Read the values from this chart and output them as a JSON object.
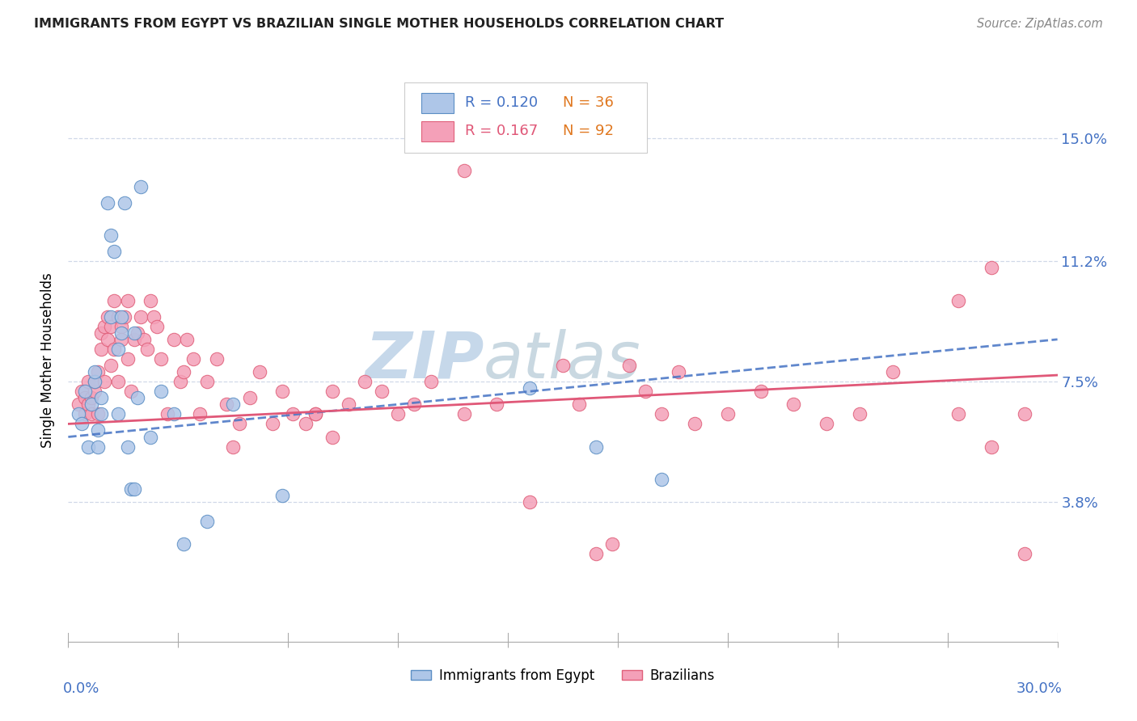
{
  "title": "IMMIGRANTS FROM EGYPT VS BRAZILIAN SINGLE MOTHER HOUSEHOLDS CORRELATION CHART",
  "source": "Source: ZipAtlas.com",
  "ylabel": "Single Mother Households",
  "ytick_labels": [
    "15.0%",
    "11.2%",
    "7.5%",
    "3.8%"
  ],
  "ytick_values": [
    0.15,
    0.112,
    0.075,
    0.038
  ],
  "xlim": [
    0.0,
    0.3
  ],
  "ylim": [
    -0.005,
    0.168
  ],
  "legend_egypt_R": "0.120",
  "legend_egypt_N": "36",
  "legend_brazil_R": "0.167",
  "legend_brazil_N": "92",
  "egypt_face_color": "#aec6e8",
  "egypt_edge_color": "#5b8ec4",
  "brazil_face_color": "#f4a0b8",
  "brazil_edge_color": "#e0607a",
  "egypt_line_color": "#4472c4",
  "brazil_line_color": "#e05878",
  "axis_label_color": "#4472c4",
  "grid_color": "#d0d8e8",
  "n_color": "#e07820",
  "egypt_x": [
    0.003,
    0.004,
    0.005,
    0.006,
    0.007,
    0.008,
    0.008,
    0.009,
    0.009,
    0.01,
    0.01,
    0.012,
    0.013,
    0.013,
    0.014,
    0.015,
    0.015,
    0.016,
    0.016,
    0.017,
    0.018,
    0.019,
    0.02,
    0.02,
    0.021,
    0.022,
    0.025,
    0.028,
    0.032,
    0.035,
    0.042,
    0.05,
    0.065,
    0.14,
    0.16,
    0.18
  ],
  "egypt_y": [
    0.065,
    0.062,
    0.072,
    0.055,
    0.068,
    0.075,
    0.078,
    0.06,
    0.055,
    0.07,
    0.065,
    0.13,
    0.095,
    0.12,
    0.115,
    0.085,
    0.065,
    0.095,
    0.09,
    0.13,
    0.055,
    0.042,
    0.042,
    0.09,
    0.07,
    0.135,
    0.058,
    0.072,
    0.065,
    0.025,
    0.032,
    0.068,
    0.04,
    0.073,
    0.055,
    0.045
  ],
  "brazil_x": [
    0.003,
    0.004,
    0.005,
    0.005,
    0.006,
    0.006,
    0.007,
    0.007,
    0.008,
    0.008,
    0.009,
    0.009,
    0.01,
    0.01,
    0.011,
    0.011,
    0.012,
    0.012,
    0.013,
    0.013,
    0.014,
    0.014,
    0.015,
    0.015,
    0.016,
    0.016,
    0.017,
    0.018,
    0.018,
    0.019,
    0.02,
    0.021,
    0.022,
    0.023,
    0.024,
    0.025,
    0.026,
    0.027,
    0.028,
    0.03,
    0.032,
    0.034,
    0.035,
    0.036,
    0.038,
    0.04,
    0.042,
    0.045,
    0.048,
    0.05,
    0.052,
    0.055,
    0.058,
    0.062,
    0.065,
    0.068,
    0.072,
    0.075,
    0.08,
    0.085,
    0.09,
    0.095,
    0.1,
    0.105,
    0.11,
    0.12,
    0.13,
    0.14,
    0.15,
    0.155,
    0.165,
    0.17,
    0.175,
    0.18,
    0.185,
    0.19,
    0.2,
    0.21,
    0.22,
    0.23,
    0.24,
    0.25,
    0.27,
    0.28,
    0.29,
    0.27,
    0.28,
    0.29,
    0.16,
    0.08,
    0.075,
    0.12
  ],
  "brazil_y": [
    0.068,
    0.072,
    0.065,
    0.07,
    0.068,
    0.075,
    0.07,
    0.065,
    0.072,
    0.075,
    0.065,
    0.078,
    0.085,
    0.09,
    0.075,
    0.092,
    0.088,
    0.095,
    0.08,
    0.092,
    0.085,
    0.1,
    0.095,
    0.075,
    0.092,
    0.088,
    0.095,
    0.082,
    0.1,
    0.072,
    0.088,
    0.09,
    0.095,
    0.088,
    0.085,
    0.1,
    0.095,
    0.092,
    0.082,
    0.065,
    0.088,
    0.075,
    0.078,
    0.088,
    0.082,
    0.065,
    0.075,
    0.082,
    0.068,
    0.055,
    0.062,
    0.07,
    0.078,
    0.062,
    0.072,
    0.065,
    0.062,
    0.065,
    0.072,
    0.068,
    0.075,
    0.072,
    0.065,
    0.068,
    0.075,
    0.14,
    0.068,
    0.038,
    0.08,
    0.068,
    0.025,
    0.08,
    0.072,
    0.065,
    0.078,
    0.062,
    0.065,
    0.072,
    0.068,
    0.062,
    0.065,
    0.078,
    0.065,
    0.055,
    0.065,
    0.1,
    0.11,
    0.022,
    0.022,
    0.058,
    0.065,
    0.065
  ]
}
